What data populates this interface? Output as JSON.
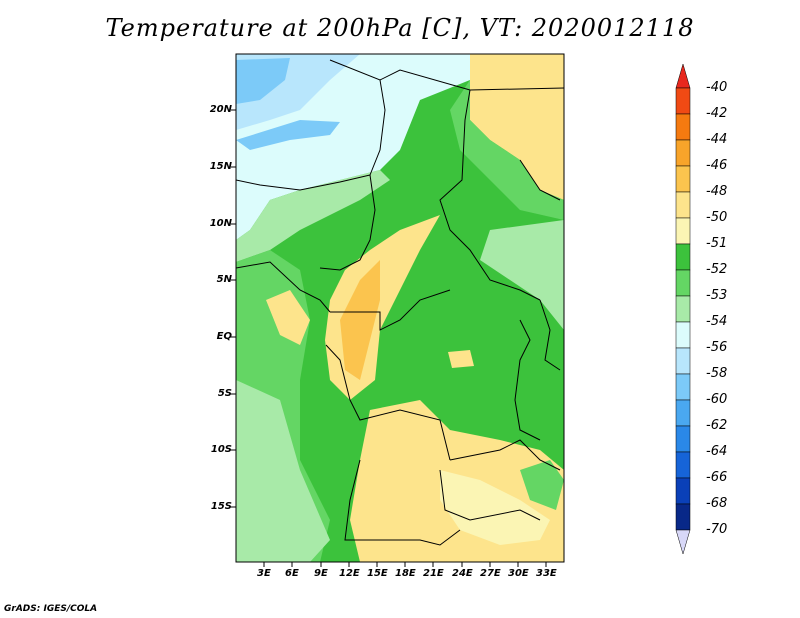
{
  "title": "Temperature at 200hPa [C], VT: 2020012118",
  "credit": "GrADS: IGES/COLA",
  "map": {
    "lat_labels": [
      "20N",
      "15N",
      "10N",
      "5N",
      "EQ",
      "5S",
      "10S",
      "15S"
    ],
    "lon_labels": [
      "3E",
      "6E",
      "9E",
      "12E",
      "15E",
      "18E",
      "21E",
      "24E",
      "27E",
      "30E",
      "33E"
    ],
    "field": "Temperature at 200hPa",
    "units": "C",
    "valid_time": "2020012118"
  },
  "colorbar": {
    "labels": [
      "-40",
      "-42",
      "-44",
      "-46",
      "-48",
      "-50",
      "-51",
      "-52",
      "-53",
      "-54",
      "-56",
      "-58",
      "-60",
      "-62",
      "-64",
      "-66",
      "-68",
      "-70"
    ],
    "colors": [
      "#e8281e",
      "#f04a14",
      "#f57a10",
      "#f8a42a",
      "#fbc44e",
      "#fde48c",
      "#fbf5b4",
      "#3cc23c",
      "#64d664",
      "#a8eaa8",
      "#dcfcfc",
      "#b8e6fc",
      "#7ccaf8",
      "#4aa8f0",
      "#2a88e8",
      "#1664d8",
      "#0a40b8",
      "#082888",
      "#101060"
    ]
  }
}
